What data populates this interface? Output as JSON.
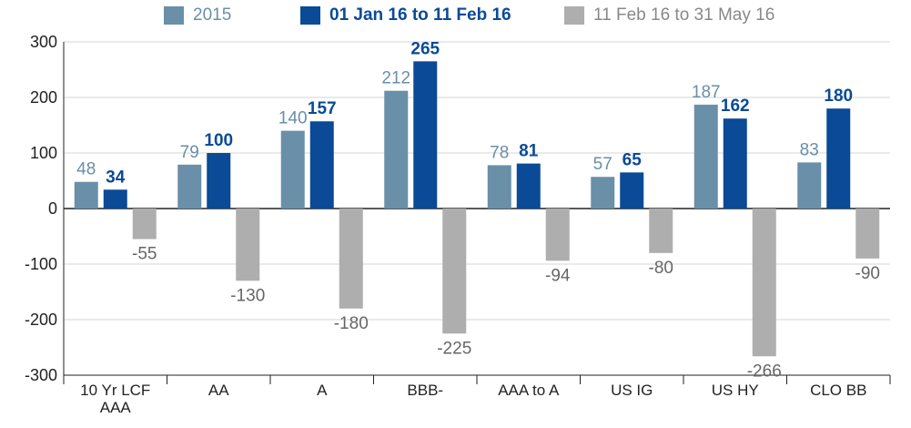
{
  "chart_data": {
    "type": "bar",
    "title": "",
    "xlabel": "",
    "ylabel": "",
    "ylim": [
      -300,
      300
    ],
    "yticks": [
      300,
      200,
      100,
      0,
      -100,
      -200,
      -300
    ],
    "ytick_labels": [
      "300",
      "200",
      "100",
      "0",
      "-100",
      "-200",
      "-300"
    ],
    "grid": true,
    "legend_placement": "top",
    "categories": [
      "10 Yr LCF AAA",
      "AA",
      "A",
      "BBB-",
      "AAA to A",
      "US IG",
      "US HY",
      "CLO BB"
    ],
    "category_label_lines": [
      [
        "10 Yr LCF",
        "AAA"
      ],
      [
        "AA"
      ],
      [
        "A"
      ],
      [
        "BBB-"
      ],
      [
        "AAA to A"
      ],
      [
        "US IG"
      ],
      [
        "US HY"
      ],
      [
        "CLO BB"
      ]
    ],
    "series": [
      {
        "name": "2015",
        "color": "#6a8fa8",
        "label_color": "#6a8fa8",
        "values": [
          48,
          79,
          140,
          212,
          78,
          57,
          187,
          83
        ],
        "value_labels": [
          "48",
          "79",
          "140",
          "212",
          "78",
          "57",
          "187",
          "83"
        ]
      },
      {
        "name": "01 Jan 16 to 11 Feb 16",
        "color": "#0a4a96",
        "label_color": "#0a4a96",
        "values": [
          34,
          100,
          157,
          265,
          81,
          65,
          162,
          180
        ],
        "value_labels": [
          "34",
          "100",
          "157",
          "265",
          "81",
          "65",
          "162",
          "180"
        ]
      },
      {
        "name": "11 Feb 16 to 31 May 16",
        "color": "#aeaeae",
        "label_color": "#666666",
        "values": [
          -55,
          -130,
          -180,
          -225,
          -94,
          -80,
          -266,
          -90
        ],
        "value_labels": [
          "-55",
          "-130",
          "-180",
          "-225",
          "-94",
          "-80",
          "-266",
          "-90"
        ]
      }
    ]
  }
}
